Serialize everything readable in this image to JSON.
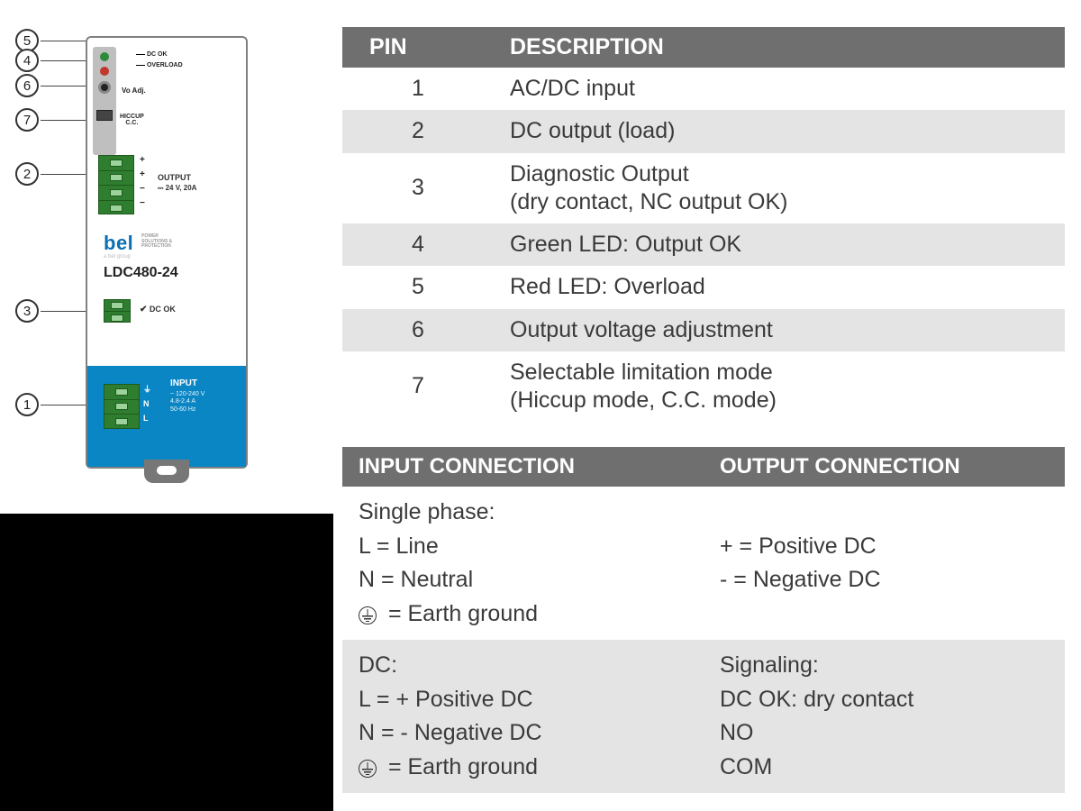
{
  "colors": {
    "table_header_bg": "#6f6f70",
    "table_header_fg": "#ffffff",
    "row_alt_bg": "#e4e4e4",
    "row_bg": "#ffffff",
    "text": "#3a3a3a",
    "device_border": "#808080",
    "terminal_green": "#2f7d2f",
    "input_blue": "#0b86c4",
    "bel_blue": "#0b6fb5",
    "led_green": "#2e8b3c",
    "led_red": "#c0392b",
    "black_box": "#000000"
  },
  "pin_table": {
    "headers": {
      "pin": "PIN",
      "desc": "DESCRIPTION"
    },
    "rows": [
      {
        "pin": "1",
        "desc": "AC/DC input"
      },
      {
        "pin": "2",
        "desc": "DC output (load)"
      },
      {
        "pin": "3",
        "desc": "Diagnostic Output\n(dry contact, NC output OK)"
      },
      {
        "pin": "4",
        "desc": "Green LED: Output OK"
      },
      {
        "pin": "5",
        "desc": "Red LED: Overload"
      },
      {
        "pin": "6",
        "desc": "Output voltage adjustment"
      },
      {
        "pin": "7",
        "desc": "Selectable limitation mode\n(Hiccup mode, C.C. mode)"
      }
    ]
  },
  "conn_table": {
    "headers": {
      "in": "INPUT CONNECTION",
      "out": "OUTPUT CONNECTION"
    },
    "rows": [
      {
        "in_title": "Single phase:",
        "in_l": "L = Line",
        "in_n": "N = Neutral",
        "in_e": " = Earth ground",
        "out_pos": "+ = Positive DC",
        "out_neg": "-  = Negative DC"
      },
      {
        "in_title": "DC:",
        "in_l": "L = + Positive DC",
        "in_n": "N = - Negative DC",
        "in_e": " = Earth ground",
        "out_title": "Signaling:",
        "out_1": "DC OK: dry contact",
        "out_2": "NO",
        "out_3": "COM"
      }
    ]
  },
  "device": {
    "dcok_label": "DC OK",
    "overload_label": "OVERLOAD",
    "voadj_label": "Vo Adj.",
    "hiccup_label": "HICCUP",
    "cc_label": "C.C.",
    "output_title": "OUTPUT",
    "output_spec": "⎓ 24 V, 20A",
    "output_pins": [
      "+",
      "+",
      "−",
      "−"
    ],
    "brand": "bel",
    "brand_sub": "POWER\nSOLUTIONS &\nPROTECTION",
    "subgroup": "a bel group",
    "model": "LDC480-24",
    "dcok_term_label": "DC OK",
    "input_title": "INPUT",
    "input_spec": "~ 120-240 V\n4.8-2.4 A\n50-60 Hz",
    "input_pins": [
      "⏚",
      "N",
      "L"
    ],
    "callouts": {
      "1": "1",
      "2": "2",
      "3": "3",
      "4": "4",
      "5": "5",
      "6": "6",
      "7": "7"
    }
  }
}
